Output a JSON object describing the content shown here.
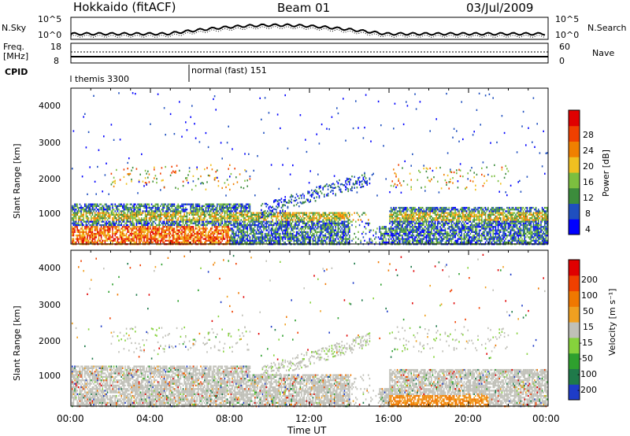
{
  "header": {
    "station": "Hokkaido (fitACF)",
    "beam": "Beam 01",
    "date": "03/Jul/2009"
  },
  "top_panel": {
    "left_label": "N.Sky",
    "right_label": "N.Search",
    "left_ticks": [
      "10^5",
      "10^0"
    ],
    "right_ticks": [
      "10^5",
      "10^0"
    ]
  },
  "freq_panel": {
    "left_label_line1": "Freq.",
    "left_label_line2": "[MHz]",
    "right_label": "Nave",
    "left_ticks": [
      "18",
      "8"
    ],
    "right_ticks": [
      "60",
      "0"
    ]
  },
  "cpid": {
    "label": "CPID",
    "modes": [
      {
        "name": "themis 3300",
        "start_hour": 0
      },
      {
        "name": "normal (fast) 151",
        "start_hour": 6
      }
    ]
  },
  "colors": {
    "power_scale": [
      "#0000ff",
      "#1f4fbf",
      "#3c8c3c",
      "#7cbf3f",
      "#f0c020",
      "#f08000",
      "#f04000",
      "#e00000"
    ],
    "velocity_scale": [
      "#1e3cc8",
      "#1f7a4a",
      "#2ea02e",
      "#86d23c",
      "#c0c0b8",
      "#f0a020",
      "#f07800",
      "#f04000",
      "#e00000"
    ]
  },
  "chart_data": [
    {
      "type": "heatmap",
      "panel": "power",
      "ylabel": "Slant Range [km]",
      "xlabel": "Time UT",
      "ylim": [
        180,
        4500
      ],
      "xlim_hours": [
        0,
        24
      ],
      "yticks": [
        "4000",
        "3000",
        "2000",
        "1000"
      ],
      "colorbar_label": "Power [dB]",
      "colorbar_ticks": [
        "28",
        "24",
        "20",
        "16",
        "12",
        "8",
        "4"
      ]
    },
    {
      "type": "heatmap",
      "panel": "velocity",
      "ylabel": "Slant Range [km]",
      "xlabel": "Time UT",
      "ylim": [
        180,
        4500
      ],
      "xlim_hours": [
        0,
        24
      ],
      "yticks": [
        "4000",
        "3000",
        "2000",
        "1000"
      ],
      "colorbar_label": "Velocity [m s⁻¹]",
      "colorbar_ticks": [
        "200",
        "100",
        "50",
        "15",
        "-15",
        "-50",
        "-100",
        "-200"
      ]
    }
  ],
  "xaxis": {
    "ticks": [
      "00:00",
      "04:00",
      "08:00",
      "12:00",
      "16:00",
      "20:00",
      "00:00"
    ],
    "label": "Time UT"
  }
}
